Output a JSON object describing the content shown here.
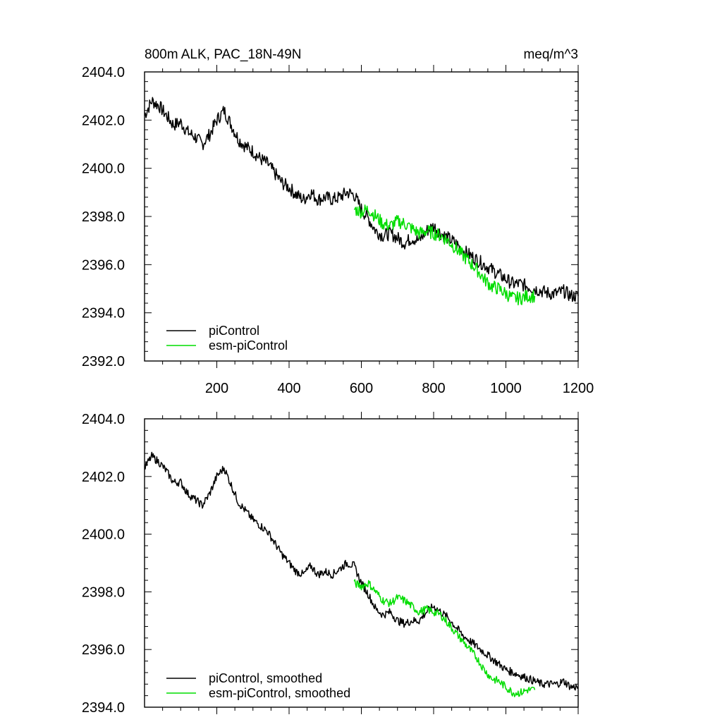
{
  "chart_data": [
    {
      "type": "line",
      "title": "800m ALK, PAC_18N-49N",
      "units": "meq/m^3",
      "xlim": [
        0,
        1200
      ],
      "ylim": [
        2392,
        2404
      ],
      "x_ticks": [
        200,
        400,
        600,
        800,
        1000,
        1200
      ],
      "y_ticks": [
        "2392.0",
        "2394.0",
        "2396.0",
        "2398.0",
        "2400.0",
        "2402.0",
        "2404.0"
      ],
      "grid": false,
      "legend_position": "bottom-left",
      "series": [
        {
          "name": "piControl",
          "color": "#000000",
          "x": [
            0,
            20,
            40,
            60,
            80,
            100,
            120,
            140,
            160,
            180,
            200,
            220,
            240,
            260,
            280,
            300,
            320,
            340,
            360,
            380,
            400,
            420,
            440,
            460,
            480,
            500,
            520,
            540,
            560,
            580,
            600,
            620,
            640,
            660,
            680,
            700,
            720,
            740,
            760,
            780,
            800,
            820,
            840,
            860,
            880,
            900,
            920,
            940,
            960,
            980,
            1000,
            1020,
            1040,
            1060,
            1080,
            1100,
            1120,
            1140,
            1160,
            1180,
            1200
          ],
          "y": [
            2402.2,
            2402.8,
            2402.6,
            2402.2,
            2401.8,
            2401.9,
            2401.5,
            2401.3,
            2401.0,
            2401.4,
            2402.0,
            2402.4,
            2401.8,
            2401.2,
            2400.9,
            2400.7,
            2400.4,
            2400.2,
            2399.8,
            2399.4,
            2399.2,
            2398.9,
            2398.7,
            2399.0,
            2398.7,
            2398.8,
            2398.7,
            2398.8,
            2399.0,
            2398.9,
            2398.3,
            2397.9,
            2397.4,
            2397.2,
            2397.3,
            2397.1,
            2396.9,
            2397.1,
            2397.0,
            2397.4,
            2397.6,
            2397.3,
            2397.1,
            2396.9,
            2396.6,
            2396.4,
            2396.2,
            2396.0,
            2395.8,
            2395.6,
            2395.4,
            2395.2,
            2395.2,
            2395.1,
            2395.0,
            2394.9,
            2394.8,
            2394.8,
            2394.9,
            2394.7,
            2394.7
          ]
        },
        {
          "name": "esm-piControl",
          "color": "#00dd00",
          "x": [
            580,
            600,
            620,
            640,
            660,
            680,
            700,
            720,
            740,
            760,
            780,
            800,
            820,
            840,
            860,
            880,
            900,
            920,
            940,
            960,
            980,
            1000,
            1020,
            1040,
            1060,
            1080
          ],
          "y": [
            2398.3,
            2398.2,
            2398.3,
            2398.0,
            2397.7,
            2397.6,
            2397.8,
            2397.7,
            2397.5,
            2397.3,
            2397.4,
            2397.3,
            2397.2,
            2397.0,
            2396.7,
            2396.4,
            2396.1,
            2395.8,
            2395.4,
            2395.1,
            2395.0,
            2394.8,
            2394.6,
            2394.6,
            2394.7,
            2394.7
          ]
        }
      ]
    },
    {
      "type": "line",
      "xlim": [
        0,
        1200
      ],
      "ylim": [
        2394,
        2404
      ],
      "y_ticks": [
        "2394.0",
        "2396.0",
        "2398.0",
        "2400.0",
        "2402.0",
        "2404.0"
      ],
      "grid": false,
      "legend_position": "bottom-left",
      "series": [
        {
          "name": "piControl, smoothed",
          "color": "#000000",
          "x": [
            0,
            20,
            40,
            60,
            80,
            100,
            120,
            140,
            160,
            180,
            200,
            220,
            240,
            260,
            280,
            300,
            320,
            340,
            360,
            380,
            400,
            420,
            440,
            460,
            480,
            500,
            520,
            540,
            560,
            580,
            600,
            620,
            640,
            660,
            680,
            700,
            720,
            740,
            760,
            780,
            800,
            820,
            840,
            860,
            880,
            900,
            920,
            940,
            960,
            980,
            1000,
            1020,
            1040,
            1060,
            1080,
            1100,
            1120,
            1140,
            1160,
            1180,
            1200
          ],
          "y": [
            2402.3,
            2402.7,
            2402.5,
            2402.2,
            2401.8,
            2401.8,
            2401.4,
            2401.2,
            2401.0,
            2401.4,
            2402.0,
            2402.3,
            2401.7,
            2401.1,
            2400.8,
            2400.5,
            2400.3,
            2400.1,
            2399.7,
            2399.3,
            2399.0,
            2398.7,
            2398.6,
            2398.9,
            2398.6,
            2398.7,
            2398.6,
            2398.8,
            2399.0,
            2398.9,
            2398.3,
            2397.9,
            2397.4,
            2397.2,
            2397.3,
            2397.0,
            2396.9,
            2397.0,
            2397.0,
            2397.3,
            2397.5,
            2397.3,
            2397.1,
            2396.8,
            2396.5,
            2396.3,
            2396.1,
            2395.9,
            2395.7,
            2395.5,
            2395.3,
            2395.2,
            2395.1,
            2395.0,
            2394.9,
            2394.8,
            2394.8,
            2394.8,
            2394.9,
            2394.7,
            2394.7
          ]
        },
        {
          "name": "esm-piControl, smoothed",
          "color": "#00dd00",
          "x": [
            580,
            600,
            620,
            640,
            660,
            680,
            700,
            720,
            740,
            760,
            780,
            800,
            820,
            840,
            860,
            880,
            900,
            920,
            940,
            960,
            980,
            1000,
            1020,
            1040,
            1060,
            1080
          ],
          "y": [
            2398.3,
            2398.2,
            2398.3,
            2398.0,
            2397.7,
            2397.6,
            2397.8,
            2397.7,
            2397.5,
            2397.3,
            2397.4,
            2397.3,
            2397.2,
            2396.9,
            2396.6,
            2396.3,
            2396.0,
            2395.7,
            2395.3,
            2395.0,
            2394.9,
            2394.7,
            2394.5,
            2394.5,
            2394.6,
            2394.6
          ]
        }
      ]
    }
  ]
}
